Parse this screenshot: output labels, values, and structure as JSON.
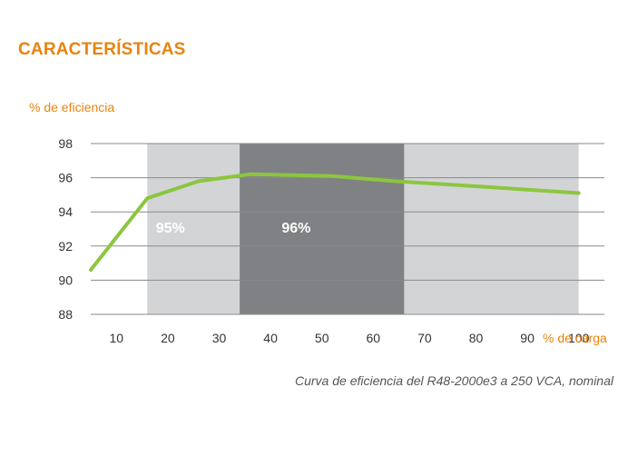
{
  "page": {
    "section_title": "CARACTERÍSTICAS",
    "caption": "Curva de eficiencia del R48-2000e3 a 250 VCA, nominal"
  },
  "colors": {
    "accent": "#e8830f",
    "band_light": "#d3d4d6",
    "band_dark": "#808184",
    "line": "#8cc63f",
    "grid": "#8a8a8a",
    "text": "#333333"
  },
  "chart_data": {
    "type": "line",
    "ylabel": "% de eficiencia",
    "xlabel": "% de carga",
    "xlim": [
      5,
      105
    ],
    "ylim": [
      88,
      98
    ],
    "x_ticks": [
      10,
      20,
      30,
      40,
      50,
      60,
      70,
      80,
      90,
      100
    ],
    "y_ticks": [
      88,
      90,
      92,
      94,
      96,
      98
    ],
    "grid": "horizontal",
    "series": [
      {
        "x": [
          5,
          16,
          26,
          36,
          52,
          64,
          80,
          100
        ],
        "values": [
          90.6,
          94.8,
          95.8,
          96.2,
          96.1,
          95.8,
          95.5,
          95.1
        ]
      }
    ],
    "bands": [
      {
        "x_from": 16,
        "x_to": 100,
        "label": "95%",
        "label_x": 20.5,
        "shade": "light"
      },
      {
        "x_from": 34,
        "x_to": 66,
        "label": "96%",
        "label_x": 45,
        "shade": "dark"
      }
    ]
  }
}
